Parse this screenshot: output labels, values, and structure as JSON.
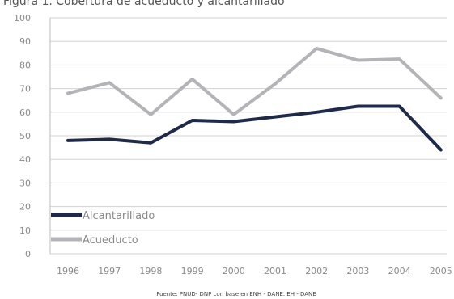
{
  "header": {
    "text": "Figura 1. Cobertura de acueducto y alcantarillado"
  },
  "source_note": "Fuente: PNUD- DNP con base en ENH - DANE. EH - DANE",
  "chart_data": {
    "type": "line",
    "title": "",
    "xlabel": "",
    "ylabel": "",
    "categories": [
      "1996",
      "1997",
      "1998",
      "1999",
      "2000",
      "2001",
      "2002",
      "2003",
      "2004",
      "2005"
    ],
    "ylim": [
      0,
      100
    ],
    "yticks": [
      0,
      10,
      20,
      30,
      40,
      50,
      60,
      70,
      80,
      90,
      100
    ],
    "grid": true,
    "legend_position": "bottom-left",
    "series": [
      {
        "name": "Alcantarillado",
        "color": "#1f2a4a",
        "values": [
          48,
          48.5,
          47,
          56.5,
          56,
          58,
          60,
          62.5,
          62.5,
          44
        ]
      },
      {
        "name": "Acueducto",
        "color": "#b4b4b8",
        "values": [
          68,
          72.5,
          59,
          74,
          59,
          72,
          87,
          82,
          82.5,
          66
        ]
      }
    ]
  }
}
